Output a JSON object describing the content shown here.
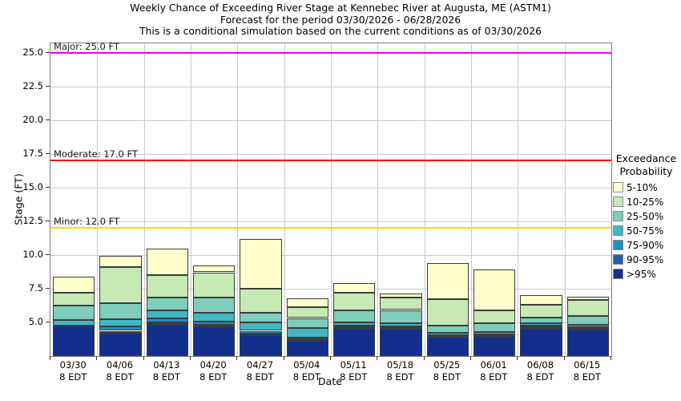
{
  "title": {
    "line1": "Weekly Chance of Exceeding River Stage at Kennebec River at Augusta, ME (ASTM1)",
    "line2": "Forecast for the period 03/30/2026 - 06/28/2026",
    "line3": "This is a conditional simulation based on the current conditions as of 03/30/2026"
  },
  "axes": {
    "x_label": "Date",
    "y_label": "Stage (FT)"
  },
  "legend": {
    "title_line1": "Exceedance",
    "title_line2": "Probability",
    "items": [
      {
        "label": "5-10%",
        "color": "#FFFFCC"
      },
      {
        "label": "10-25%",
        "color": "#C7E9B4"
      },
      {
        "label": "25-50%",
        "color": "#7FCDBB"
      },
      {
        "label": "50-75%",
        "color": "#41B6C4"
      },
      {
        "label": "75-90%",
        "color": "#1D91C0"
      },
      {
        "label": "90-95%",
        "color": "#225EA8"
      },
      {
        "label": ">95%",
        "color": "#132F8C"
      }
    ]
  },
  "chart_data": {
    "type": "bar",
    "stacked": true,
    "title": "Weekly Chance of Exceeding River Stage at Kennebec River at Augusta, ME (ASTM1)",
    "xlabel": "Date",
    "ylabel": "Stage (FT)",
    "ylim": [
      2.47,
      25.72
    ],
    "yticks": [
      5.0,
      7.5,
      10.0,
      12.5,
      15.0,
      17.5,
      20.0,
      22.5,
      25.0
    ],
    "grid": true,
    "legend_position": "right",
    "bands_bottom_to_top": [
      {
        "label": ">95%",
        "color": "#132F8C"
      },
      {
        "label": "90-95%",
        "color": "#225EA8"
      },
      {
        "label": "75-90%",
        "color": "#1D91C0"
      },
      {
        "label": "50-75%",
        "color": "#41B6C4"
      },
      {
        "label": "25-50%",
        "color": "#7FCDBB"
      },
      {
        "label": "10-25%",
        "color": "#C7E9B4"
      },
      {
        "label": "5-10%",
        "color": "#FFFFCC"
      }
    ],
    "thresholds": [
      {
        "name": "major",
        "label": "Major: 25.0 FT",
        "value": 25.0,
        "color": "#EE00EE"
      },
      {
        "name": "moderate",
        "label": "Moderate: 17.0 FT",
        "value": 17.0,
        "color": "#FF0000"
      },
      {
        "name": "minor",
        "label": "Minor: 12.0 FT",
        "value": 12.0,
        "color": "#FFD700"
      }
    ],
    "bar_base_stage_ft": 2.47,
    "bars": [
      {
        "date": "03/30",
        "time": "8 EDT",
        "band_tops_ft": [
          4.73,
          4.74,
          4.75,
          5.15,
          6.25,
          7.2,
          8.4
        ]
      },
      {
        "date": "04/06",
        "time": "8 EDT",
        "band_tops_ft": [
          4.2,
          4.35,
          4.65,
          5.2,
          6.4,
          9.1,
          9.9
        ]
      },
      {
        "date": "04/13",
        "time": "8 EDT",
        "band_tops_ft": [
          4.85,
          5.0,
          5.25,
          5.85,
          6.8,
          8.5,
          10.45
        ]
      },
      {
        "date": "04/20",
        "time": "8 EDT",
        "band_tops_ft": [
          4.68,
          4.8,
          5.05,
          5.7,
          6.8,
          8.7,
          9.2
        ]
      },
      {
        "date": "04/27",
        "time": "8 EDT",
        "band_tops_ft": [
          4.05,
          4.15,
          4.35,
          4.95,
          5.7,
          7.5,
          11.2
        ]
      },
      {
        "date": "05/04",
        "time": "8 EDT",
        "band_tops_ft": [
          3.7,
          3.75,
          3.85,
          4.55,
          5.3,
          6.1,
          6.75
        ]
      },
      {
        "date": "05/11",
        "time": "8 EDT",
        "band_tops_ft": [
          4.55,
          4.62,
          4.75,
          4.95,
          5.85,
          7.2,
          7.9
        ]
      },
      {
        "date": "05/18",
        "time": "8 EDT",
        "band_tops_ft": [
          4.5,
          4.6,
          4.7,
          4.9,
          5.9,
          6.8,
          7.1
        ]
      },
      {
        "date": "05/25",
        "time": "8 EDT",
        "band_tops_ft": [
          3.93,
          3.98,
          4.05,
          4.2,
          4.76,
          6.7,
          9.4
        ]
      },
      {
        "date": "06/01",
        "time": "8 EDT",
        "band_tops_ft": [
          3.95,
          4.0,
          4.1,
          4.28,
          4.94,
          5.85,
          8.9
        ]
      },
      {
        "date": "06/08",
        "time": "8 EDT",
        "band_tops_ft": [
          4.55,
          4.62,
          4.72,
          4.9,
          5.33,
          6.3,
          7.0
        ]
      },
      {
        "date": "06/15",
        "time": "8 EDT",
        "band_tops_ft": [
          4.45,
          4.5,
          4.6,
          4.78,
          5.43,
          6.65,
          6.9
        ]
      }
    ]
  }
}
